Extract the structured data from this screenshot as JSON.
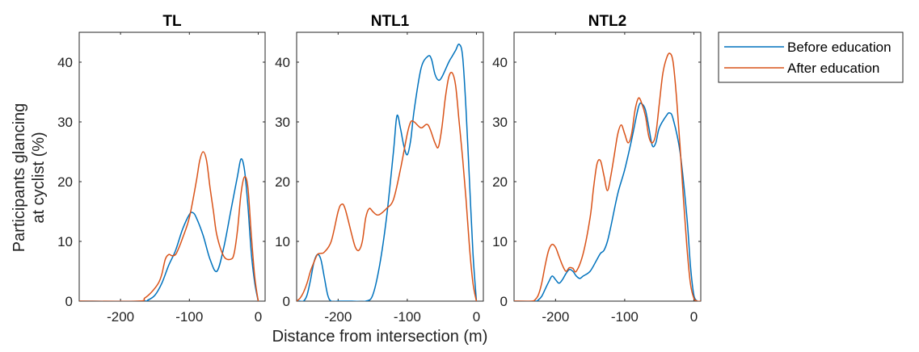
{
  "ylabel_line1": "Participants glancing",
  "ylabel_line2": "at cyclist (%)",
  "xlabel": "Distance from intersection (m)",
  "colors": {
    "before": "#0072BD",
    "after": "#D95319"
  },
  "legend": [
    {
      "name": "Before education",
      "color": "#0072BD"
    },
    {
      "name": "After education",
      "color": "#D95319"
    }
  ],
  "chart_data": [
    {
      "type": "line",
      "title": "TL",
      "xlim": [
        -260,
        10
      ],
      "ylim": [
        0,
        45
      ],
      "xticks": [
        -200,
        -100,
        0
      ],
      "yticks": [
        0,
        10,
        20,
        30,
        40
      ],
      "ytick_labels": [
        "0",
        "10",
        "20",
        "30",
        "40"
      ],
      "series": [
        {
          "name": "Before education",
          "x": [
            -260,
            -170,
            -160,
            -150,
            -140,
            -130,
            -120,
            -110,
            -100,
            -95,
            -90,
            -80,
            -70,
            -60,
            -50,
            -40,
            -30,
            -25,
            -20,
            -15,
            -10,
            -5,
            0
          ],
          "y": [
            0,
            0,
            0.2,
            1,
            3,
            6,
            8.5,
            12,
            14.5,
            14.8,
            14,
            11,
            7,
            5,
            9,
            15,
            21,
            23.8,
            22,
            16,
            8,
            3,
            0
          ]
        },
        {
          "name": "After education",
          "x": [
            -260,
            -175,
            -165,
            -155,
            -145,
            -140,
            -135,
            -130,
            -125,
            -120,
            -115,
            -110,
            -100,
            -90,
            -85,
            -80,
            -75,
            -70,
            -65,
            -60,
            -50,
            -40,
            -35,
            -30,
            -25,
            -20,
            -15,
            -10,
            -5,
            0
          ],
          "y": [
            0,
            0,
            0.5,
            1.5,
            3,
            4.5,
            7,
            7.8,
            7.6,
            7.8,
            9,
            10.5,
            14,
            20,
            23.5,
            25,
            23.5,
            19,
            15,
            11,
            7.5,
            7,
            8,
            12,
            18,
            20.8,
            19,
            11,
            4,
            0
          ]
        }
      ]
    },
    {
      "type": "line",
      "title": "NTL1",
      "xlim": [
        -260,
        10
      ],
      "ylim": [
        0,
        45
      ],
      "xticks": [
        -200,
        -100,
        0
      ],
      "yticks": [
        0,
        10,
        20,
        30,
        40
      ],
      "ytick_labels": [
        "0",
        "10",
        "20",
        "30",
        "40"
      ],
      "series": [
        {
          "name": "Before education",
          "x": [
            -260,
            -255,
            -250,
            -245,
            -240,
            -235,
            -230,
            -225,
            -220,
            -215,
            -210,
            -200,
            -180,
            -160,
            -150,
            -140,
            -130,
            -120,
            -115,
            -110,
            -105,
            -100,
            -95,
            -90,
            -80,
            -70,
            -65,
            -60,
            -55,
            -50,
            -40,
            -35,
            -30,
            -25,
            -20,
            -15,
            -10,
            -5,
            0
          ],
          "y": [
            0,
            0,
            0,
            1,
            3.5,
            6.5,
            7.8,
            7,
            4,
            1,
            0,
            0,
            0,
            0,
            1,
            6,
            14,
            25,
            31,
            29,
            26,
            24.5,
            27,
            32,
            39,
            41,
            40.5,
            38,
            37,
            37.5,
            40,
            41,
            42,
            43,
            41,
            32,
            20,
            8,
            0
          ]
        },
        {
          "name": "After education",
          "x": [
            -260,
            -255,
            -250,
            -245,
            -240,
            -235,
            -230,
            -225,
            -220,
            -210,
            -200,
            -195,
            -190,
            -180,
            -175,
            -170,
            -165,
            -160,
            -155,
            -150,
            -145,
            -140,
            -130,
            -120,
            -110,
            -100,
            -95,
            -90,
            -80,
            -70,
            -60,
            -55,
            -50,
            -45,
            -40,
            -35,
            -30,
            -25,
            -20,
            -15,
            -10,
            -5,
            0
          ],
          "y": [
            0,
            0.5,
            1.5,
            3,
            5,
            6.5,
            7.8,
            8,
            8.2,
            10,
            15,
            16.2,
            15.5,
            11,
            9,
            8.5,
            10,
            14,
            15.5,
            15,
            14.5,
            14.5,
            15.5,
            17,
            22,
            28,
            30,
            30,
            29,
            29.5,
            26.5,
            25.8,
            29,
            34,
            37.5,
            38.2,
            36,
            30,
            24,
            17,
            9,
            3,
            0
          ]
        }
      ]
    },
    {
      "type": "line",
      "title": "NTL2",
      "xlim": [
        -260,
        10
      ],
      "ylim": [
        0,
        45
      ],
      "xticks": [
        -200,
        -100,
        0
      ],
      "yticks": [
        0,
        10,
        20,
        30,
        40
      ],
      "ytick_labels": [
        "0",
        "10",
        "20",
        "30",
        "40"
      ],
      "series": [
        {
          "name": "Before education",
          "x": [
            -260,
            -230,
            -225,
            -220,
            -215,
            -210,
            -205,
            -200,
            -195,
            -190,
            -185,
            -180,
            -175,
            -170,
            -165,
            -160,
            -150,
            -140,
            -135,
            -130,
            -125,
            -120,
            -110,
            -100,
            -90,
            -80,
            -75,
            -70,
            -65,
            -60,
            -55,
            -50,
            -40,
            -35,
            -30,
            -20,
            -10,
            -5,
            0,
            5
          ],
          "y": [
            0,
            0,
            0.2,
            0.8,
            2,
            3.2,
            4.2,
            3.6,
            3,
            3.6,
            4.6,
            5.3,
            5,
            4.2,
            3.8,
            4.2,
            5,
            7,
            8,
            8.5,
            10,
            12.5,
            18,
            22,
            27,
            32.5,
            33,
            32,
            29,
            26,
            26.5,
            29,
            31,
            31.5,
            30.5,
            25,
            14,
            6,
            1,
            0
          ]
        },
        {
          "name": "After education",
          "x": [
            -260,
            -235,
            -230,
            -225,
            -220,
            -215,
            -210,
            -205,
            -200,
            -195,
            -190,
            -185,
            -180,
            -175,
            -170,
            -160,
            -150,
            -145,
            -140,
            -135,
            -130,
            -125,
            -120,
            -115,
            -110,
            -105,
            -100,
            -95,
            -90,
            -85,
            -80,
            -75,
            -70,
            -65,
            -60,
            -55,
            -50,
            -45,
            -40,
            -35,
            -30,
            -25,
            -20,
            -15,
            -10,
            -5,
            0,
            5,
            10
          ],
          "y": [
            0,
            0,
            0.2,
            1,
            3,
            6,
            8.5,
            9.5,
            9,
            7.5,
            6,
            5,
            5.6,
            5.5,
            5,
            8,
            14,
            19,
            23,
            23.5,
            21,
            18.5,
            21,
            24.5,
            28,
            29.5,
            28,
            26.5,
            28,
            32,
            34,
            33,
            31,
            27.5,
            26.5,
            28,
            33,
            38,
            40.5,
            41.5,
            40,
            34,
            26,
            17,
            9,
            3,
            0.5,
            0,
            0
          ]
        }
      ]
    }
  ]
}
